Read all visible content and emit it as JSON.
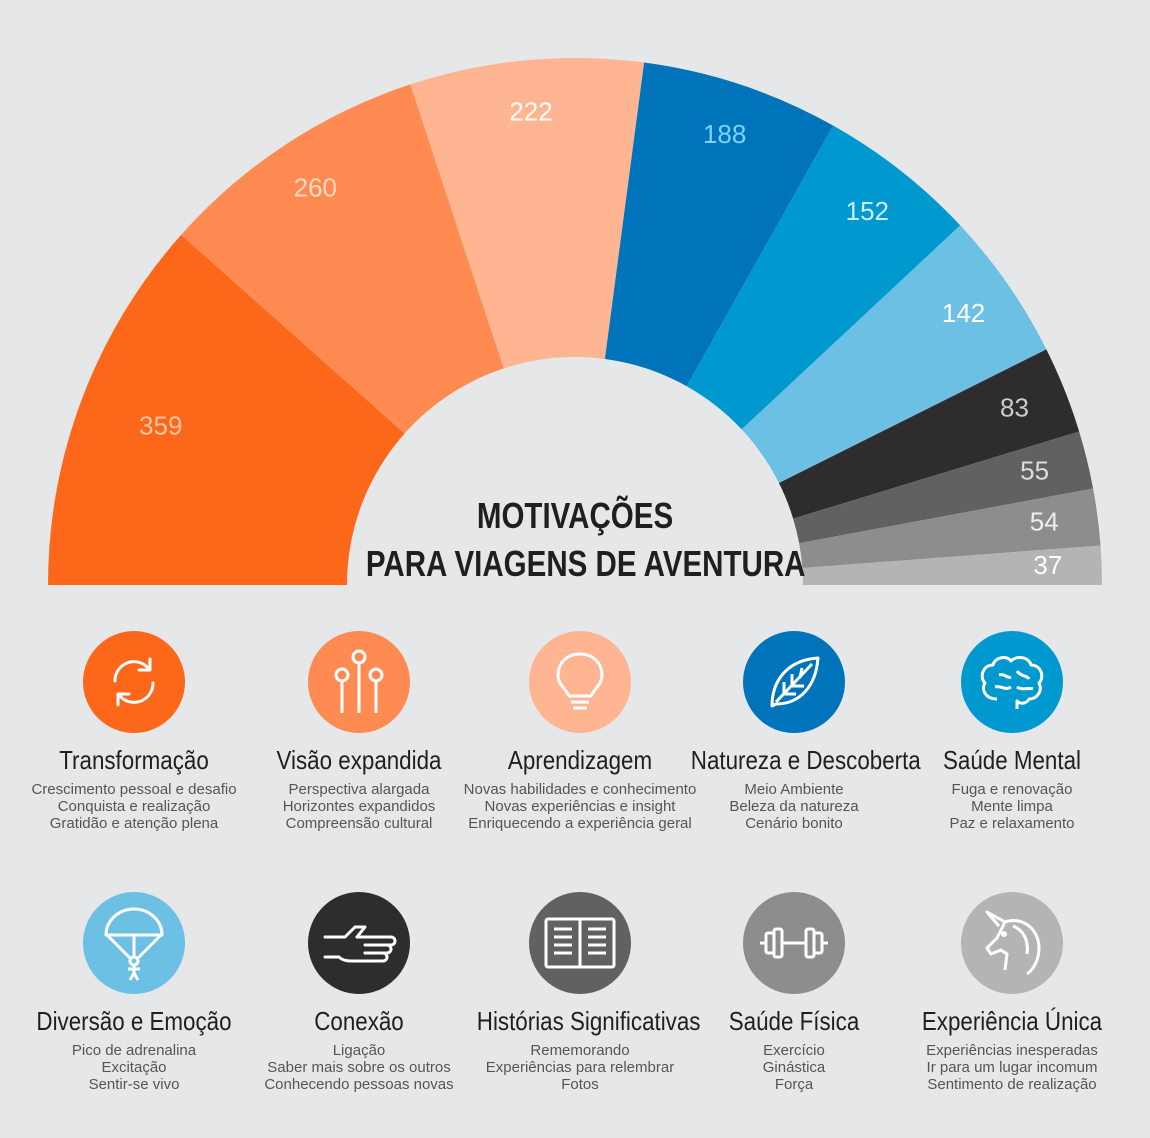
{
  "title": {
    "line1": "MOTIVAÇÕES",
    "line2": "PARA VIAGENS DE AVENTURA"
  },
  "chart_data": {
    "type": "pie",
    "variant": "half-donut",
    "title": "MOTIVAÇÕES PARA VIAGENS DE AVENTURA",
    "values": [
      359,
      260,
      222,
      188,
      152,
      142,
      83,
      55,
      54,
      37
    ],
    "labels": [
      "359",
      "260",
      "222",
      "188",
      "152",
      "142",
      "83",
      "55",
      "54",
      "37"
    ],
    "categories": [
      "Transformação",
      "Visão expandida",
      "Aprendizagem",
      "Natureza e Descoberta",
      "Saúde Mental",
      "Diversão e Emoção",
      "Conexão",
      "Histórias Significativas",
      "Saúde Física",
      "Experiência Única"
    ],
    "colors": [
      "#fc6719",
      "#ff8a52",
      "#ffb592",
      "#0074ba",
      "#0099cf",
      "#6cc0e4",
      "#2d2d2d",
      "#616161",
      "#8d8d8d",
      "#b4b4b4"
    ],
    "label_colors": [
      "#ffc4a3",
      "#ffd9c2",
      "#ffffff",
      "#7fd1ff",
      "#cdeefa",
      "#ffffff",
      "#cccccc",
      "#dddddd",
      "#eeeeee",
      "#ffffff"
    ]
  },
  "motivations": [
    {
      "title": "Transformação",
      "icon": "refresh-icon",
      "color": "#fc6719",
      "lines": [
        "Crescimento pessoal e desafio",
        "Conquista e realização",
        "Gratidão e atenção plena"
      ]
    },
    {
      "title": "Visão expandida",
      "icon": "nodes-icon",
      "color": "#ff8a52",
      "lines": [
        "Perspectiva alargada",
        "Horizontes expandidos",
        "Compreensão cultural"
      ]
    },
    {
      "title": "Aprendizagem",
      "icon": "lightbulb-icon",
      "color": "#ffb592",
      "lines": [
        "Novas habilidades e conhecimento",
        "Novas experiências e insight",
        "Enriquecendo a experiência geral"
      ]
    },
    {
      "title": "Natureza e Descoberta",
      "icon": "leaf-icon",
      "color": "#0074ba",
      "lines": [
        "Meio Ambiente",
        "Beleza da natureza",
        "Cenário bonito"
      ]
    },
    {
      "title": "Saúde Mental",
      "icon": "brain-icon",
      "color": "#0099cf",
      "lines": [
        "Fuga e renovação",
        "Mente limpa",
        "Paz e relaxamento"
      ]
    },
    {
      "title": "Diversão e Emoção",
      "icon": "parachute-icon",
      "color": "#6cc0e4",
      "lines": [
        "Pico de adrenalina",
        "Excitação",
        "Sentir-se vivo"
      ]
    },
    {
      "title": "Conexão",
      "icon": "handshake-icon",
      "color": "#2d2d2d",
      "lines": [
        "Ligação",
        "Saber mais sobre os outros",
        "Conhecendo pessoas novas"
      ]
    },
    {
      "title": "Histórias Significativas",
      "icon": "book-icon",
      "color": "#616161",
      "lines": [
        "Rememorando",
        "Experiências para relembrar",
        "Fotos"
      ]
    },
    {
      "title": "Saúde Física",
      "icon": "dumbbell-icon",
      "color": "#8d8d8d",
      "lines": [
        "Exercício",
        "Ginástica",
        "Força"
      ]
    },
    {
      "title": "Experiência Única",
      "icon": "unicorn-icon",
      "color": "#b4b4b4",
      "lines": [
        "Experiências inesperadas",
        "Ir para um lugar incomum",
        "Sentimento de realização"
      ]
    }
  ]
}
